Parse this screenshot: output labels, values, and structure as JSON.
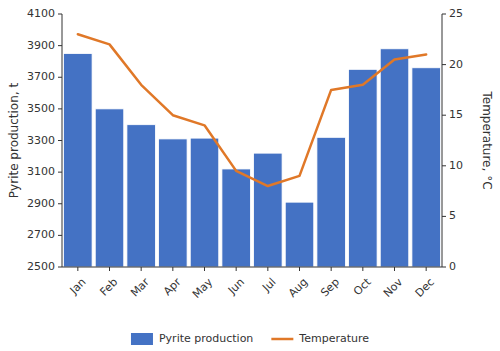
{
  "chart_data": {
    "type": "bar",
    "categories": [
      "Jan",
      "Feb",
      "Mar",
      "Apr",
      "May",
      "Jun",
      "Jul",
      "Aug",
      "Sep",
      "Oct",
      "Nov",
      "Dec"
    ],
    "series": [
      {
        "name": "Pyrite production",
        "type": "bar",
        "color": "#4472c4",
        "values": [
          3850,
          3500,
          3400,
          3310,
          3315,
          3120,
          3220,
          2910,
          3320,
          3750,
          3880,
          3760
        ]
      },
      {
        "name": "Temperature",
        "type": "line",
        "color": "#e07828",
        "axis": "y2",
        "values": [
          23,
          22,
          18,
          15,
          14,
          9.5,
          8,
          9,
          17.5,
          18,
          20.5,
          21
        ]
      }
    ],
    "ylabel": "Pyrite production, t",
    "y2label": "Temperature, °C",
    "ylim": [
      2500,
      4100
    ],
    "yticks": [
      2500,
      2700,
      2900,
      3100,
      3300,
      3500,
      3700,
      3900,
      4100
    ],
    "y2lim": [
      0,
      25
    ],
    "y2ticks": [
      0,
      5,
      10,
      15,
      20,
      25
    ],
    "legend": "bottom",
    "grid": false
  }
}
